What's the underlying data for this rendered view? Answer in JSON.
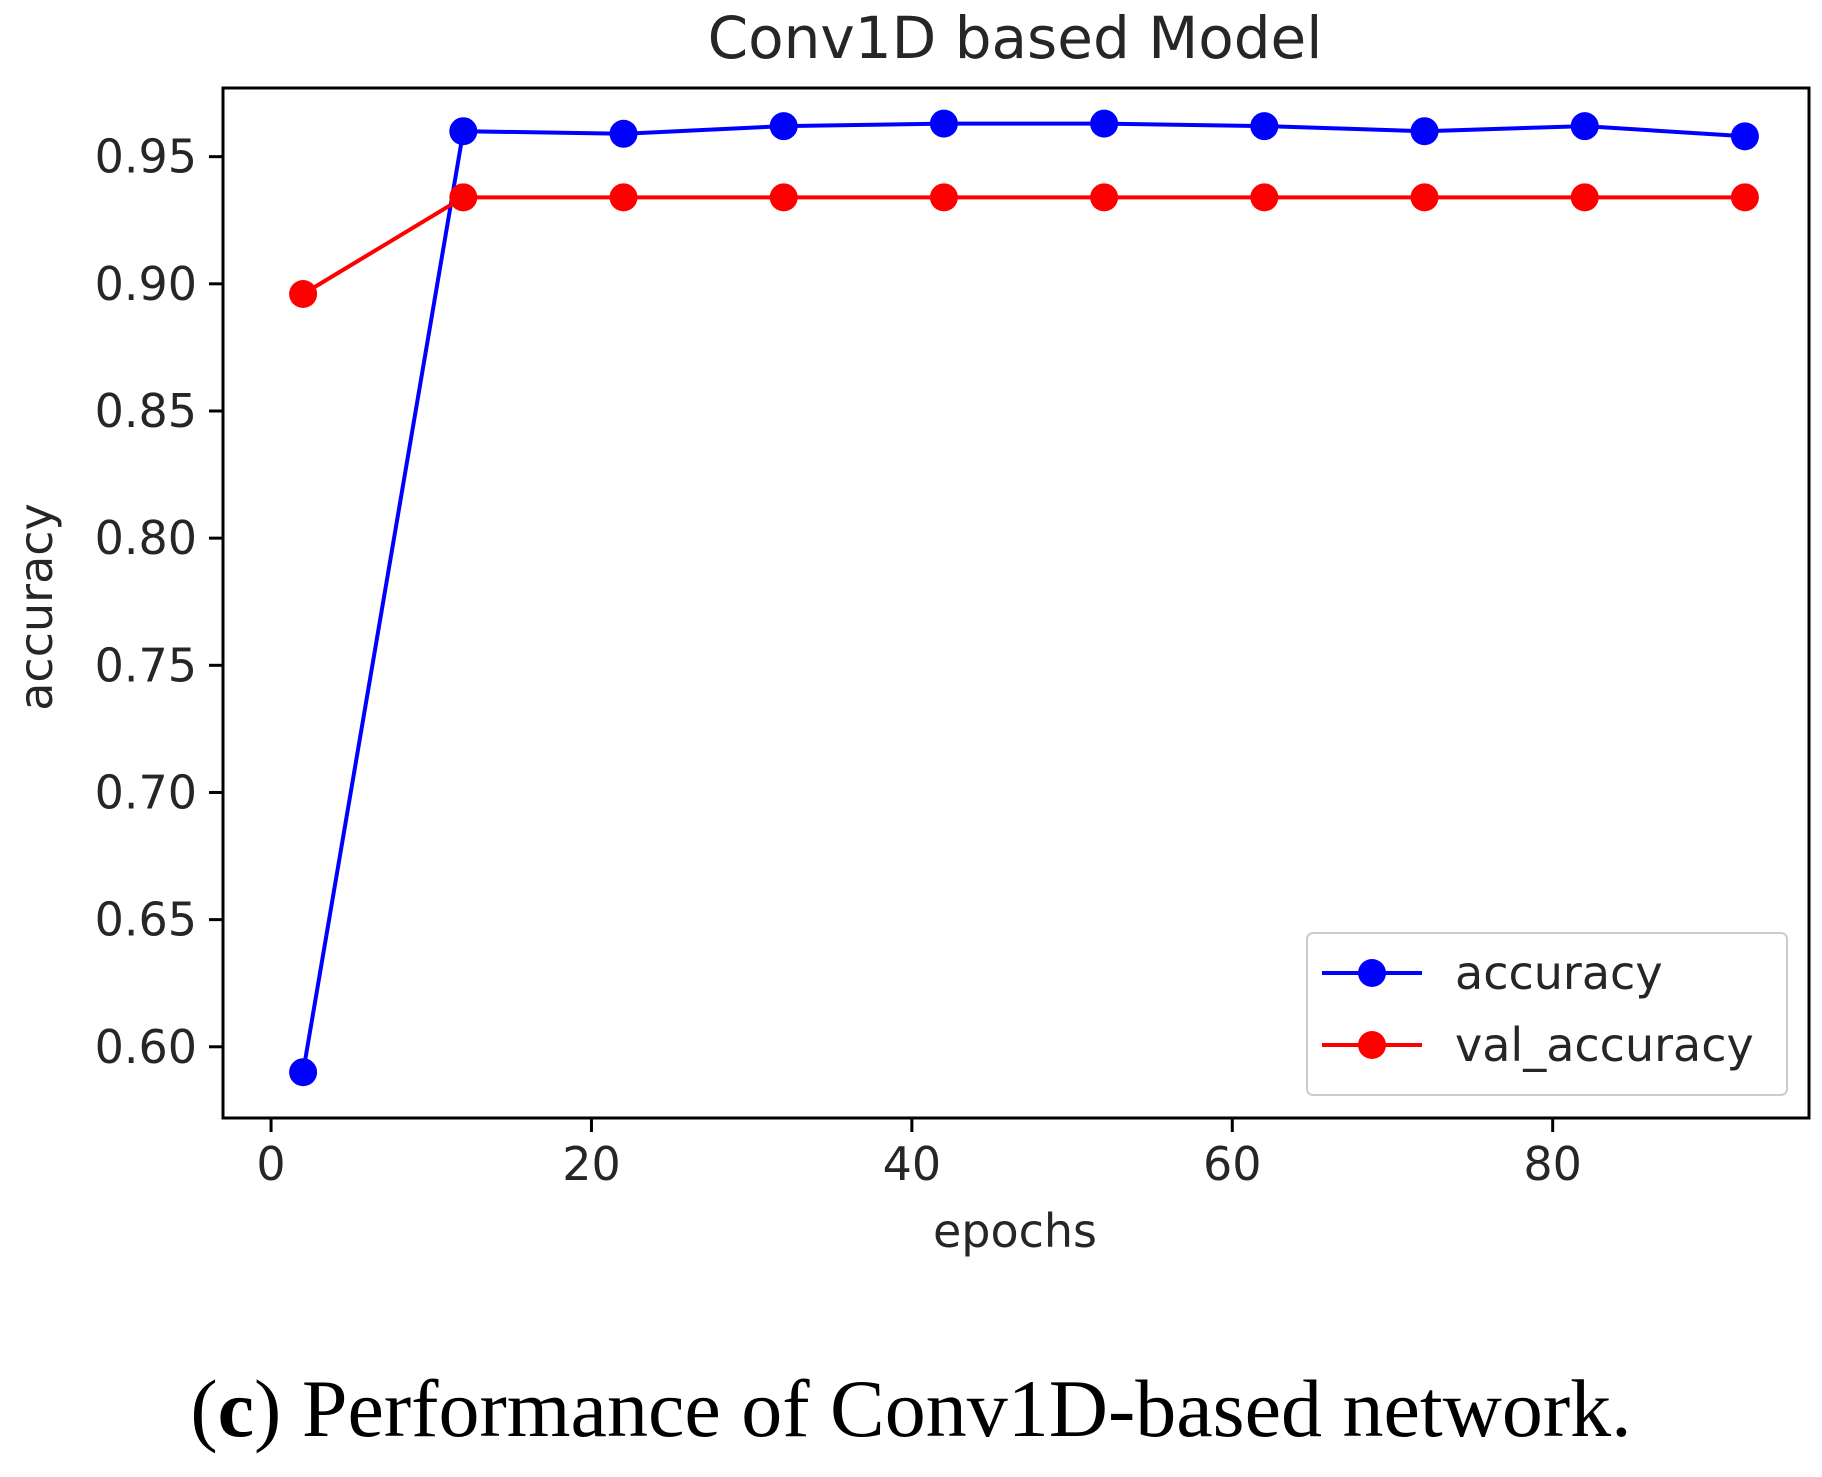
{
  "chart_data": {
    "type": "line",
    "title": "Conv1D based Model",
    "xlabel": "epochs",
    "ylabel": "accuracy",
    "xlim": [
      -3,
      96
    ],
    "ylim": [
      0.572,
      0.977
    ],
    "x_ticks": [
      0,
      20,
      40,
      60,
      80
    ],
    "x_tick_labels": [
      "0",
      "20",
      "40",
      "60",
      "80"
    ],
    "y_ticks": [
      0.6,
      0.65,
      0.7,
      0.75,
      0.8,
      0.85,
      0.9,
      0.95
    ],
    "y_tick_labels": [
      "0.60",
      "0.65",
      "0.70",
      "0.75",
      "0.80",
      "0.85",
      "0.90",
      "0.95"
    ],
    "legend_position": "lower-right",
    "grid": false,
    "x": [
      2,
      12,
      22,
      32,
      42,
      52,
      62,
      72,
      82,
      92
    ],
    "series": [
      {
        "name": "accuracy",
        "color": "#0000ff",
        "values": [
          0.59,
          0.96,
          0.959,
          0.962,
          0.963,
          0.963,
          0.962,
          0.96,
          0.962,
          0.958
        ]
      },
      {
        "name": "val_accuracy",
        "color": "#ff0000",
        "values": [
          0.896,
          0.934,
          0.934,
          0.934,
          0.934,
          0.934,
          0.934,
          0.934,
          0.934,
          0.934
        ]
      }
    ]
  },
  "caption": {
    "label": "c",
    "text": " Performance of Conv1D-based network."
  }
}
